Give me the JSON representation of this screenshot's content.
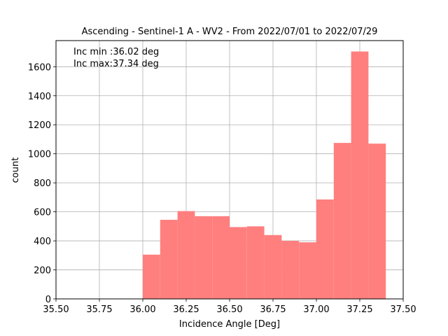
{
  "chart_data": {
    "type": "bar",
    "title": "Ascending - Sentinel-1 A - WV2 - From 2022/07/01 to 2022/07/29",
    "xlabel": "Incidence Angle [Deg]",
    "ylabel": "count",
    "xlim": [
      35.5,
      37.5
    ],
    "ylim": [
      0,
      1780
    ],
    "xticks": [
      "35.50",
      "35.75",
      "36.00",
      "36.25",
      "36.50",
      "36.75",
      "37.00",
      "37.25",
      "37.50"
    ],
    "yticks": [
      "0",
      "200",
      "400",
      "600",
      "800",
      "1000",
      "1200",
      "1400",
      "1600"
    ],
    "grid": true,
    "bar_color": "#ff7f7f",
    "bins": [
      {
        "x0": 36.0,
        "x1": 36.1,
        "count": 305
      },
      {
        "x0": 36.1,
        "x1": 36.2,
        "count": 545
      },
      {
        "x0": 36.2,
        "x1": 36.3,
        "count": 605
      },
      {
        "x0": 36.3,
        "x1": 36.4,
        "count": 570
      },
      {
        "x0": 36.4,
        "x1": 36.5,
        "count": 570
      },
      {
        "x0": 36.5,
        "x1": 36.6,
        "count": 495
      },
      {
        "x0": 36.6,
        "x1": 36.7,
        "count": 500
      },
      {
        "x0": 36.7,
        "x1": 36.8,
        "count": 440
      },
      {
        "x0": 36.8,
        "x1": 36.9,
        "count": 400
      },
      {
        "x0": 36.9,
        "x1": 37.0,
        "count": 390
      },
      {
        "x0": 37.0,
        "x1": 37.1,
        "count": 685
      },
      {
        "x0": 37.1,
        "x1": 37.2,
        "count": 1075
      },
      {
        "x0": 37.2,
        "x1": 37.3,
        "count": 1705
      },
      {
        "x0": 37.3,
        "x1": 37.4,
        "count": 1070
      }
    ],
    "annotations": [
      "Inc min :36.02 deg",
      "Inc max:37.34 deg"
    ]
  }
}
